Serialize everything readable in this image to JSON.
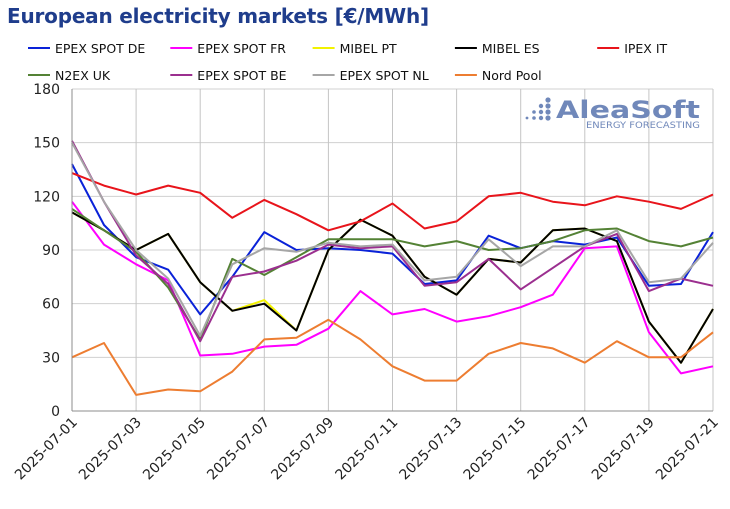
{
  "chart_data": {
    "type": "line",
    "title": "European electricity markets [€/MWh]",
    "xlabel": "",
    "ylabel": "",
    "x": [
      "2025-07-01",
      "2025-07-02",
      "2025-07-03",
      "2025-07-04",
      "2025-07-05",
      "2025-07-06",
      "2025-07-07",
      "2025-07-08",
      "2025-07-09",
      "2025-07-10",
      "2025-07-11",
      "2025-07-12",
      "2025-07-13",
      "2025-07-14",
      "2025-07-15",
      "2025-07-16",
      "2025-07-17",
      "2025-07-18",
      "2025-07-19",
      "2025-07-20",
      "2025-07-21"
    ],
    "xticks": [
      "2025-07-01",
      "2025-07-03",
      "2025-07-05",
      "2025-07-07",
      "2025-07-09",
      "2025-07-11",
      "2025-07-13",
      "2025-07-15",
      "2025-07-17",
      "2025-07-19",
      "2025-07-21"
    ],
    "ylim": [
      0,
      180
    ],
    "yticks": [
      0,
      30,
      60,
      90,
      120,
      150,
      180
    ],
    "grid": true,
    "legend": "top",
    "series": [
      {
        "name": "EPEX SPOT DE",
        "color": "#0a22d8",
        "values": [
          138,
          104,
          86,
          79,
          54,
          75,
          100,
          90,
          91,
          90,
          88,
          71,
          73,
          98,
          91,
          95,
          93,
          97,
          70,
          71,
          100
        ]
      },
      {
        "name": "EPEX SPOT FR",
        "color": "#ff00ff",
        "values": [
          117,
          93,
          82,
          73,
          31,
          32,
          36,
          37,
          46,
          67,
          54,
          57,
          50,
          53,
          58,
          65,
          91,
          92,
          44,
          21,
          25
        ]
      },
      {
        "name": "MIBEL PT",
        "color": "#f2f200",
        "values": [
          111,
          101,
          90,
          99,
          72,
          56,
          62,
          45,
          90,
          107,
          98,
          75,
          65,
          85,
          83,
          101,
          102,
          95,
          50,
          27,
          57
        ]
      },
      {
        "name": "MIBEL ES",
        "color": "#000000",
        "values": [
          111,
          101,
          90,
          99,
          72,
          56,
          60,
          45,
          90,
          107,
          98,
          75,
          65,
          85,
          83,
          101,
          102,
          95,
          50,
          27,
          57
        ]
      },
      {
        "name": "IPEX IT",
        "color": "#e8141b",
        "values": [
          133,
          126,
          121,
          126,
          122,
          108,
          118,
          110,
          101,
          106,
          116,
          102,
          106,
          120,
          122,
          117,
          115,
          120,
          117,
          113,
          121
        ]
      },
      {
        "name": "N2EX UK",
        "color": "#548235",
        "values": [
          113,
          101,
          89,
          69,
          40,
          85,
          76,
          86,
          96,
          96,
          96,
          92,
          95,
          90,
          91,
          95,
          101,
          102,
          95,
          92,
          97
        ]
      },
      {
        "name": "EPEX SPOT BE",
        "color": "#9b2f8f",
        "values": [
          151,
          117,
          87,
          71,
          39,
          75,
          78,
          84,
          93,
          91,
          92,
          70,
          72,
          85,
          68,
          80,
          92,
          99,
          67,
          74,
          70
        ]
      },
      {
        "name": "EPEX SPOT NL",
        "color": "#a6a6a6",
        "values": [
          150,
          117,
          90,
          74,
          42,
          82,
          91,
          89,
          94,
          92,
          93,
          73,
          75,
          96,
          81,
          92,
          92,
          101,
          72,
          74,
          94
        ]
      },
      {
        "name": "Nord Pool",
        "color": "#ed7d31",
        "values": [
          30,
          38,
          9,
          12,
          11,
          22,
          40,
          41,
          51,
          40,
          25,
          17,
          17,
          32,
          38,
          35,
          27,
          39,
          30,
          30,
          44
        ]
      }
    ]
  },
  "logo": {
    "name": "AleaSoft",
    "tagline": "ENERGY FORECASTING",
    "color": "#7088ba"
  }
}
